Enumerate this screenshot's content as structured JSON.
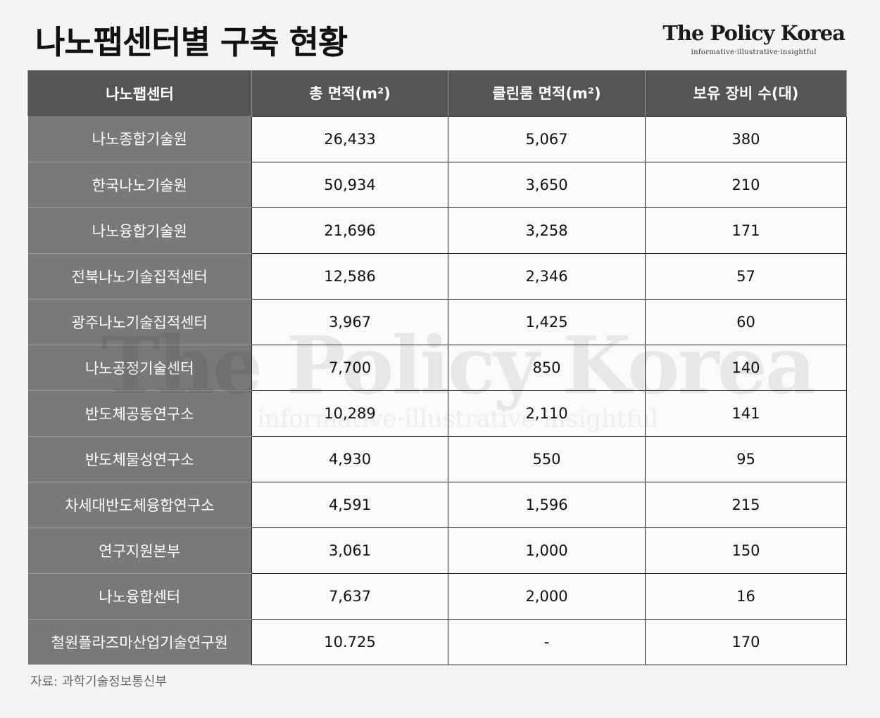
{
  "title": "나노팹센터별 구축 현황",
  "logo": {
    "name": "The Policy Korea",
    "tagline": "informative·illustrative·insightful"
  },
  "table": {
    "headers": [
      "나노팹센터",
      "총 면적(m²)",
      "클린룸 면적(m²)",
      "보유 장비 수(대)"
    ],
    "rows": [
      [
        "나노종합기술원",
        "26,433",
        "5,067",
        "380"
      ],
      [
        "한국나노기술원",
        "50,934",
        "3,650",
        "210"
      ],
      [
        "나노융합기술원",
        "21,696",
        "3,258",
        "171"
      ],
      [
        "전북나노기술집적센터",
        "12,586",
        "2,346",
        "57"
      ],
      [
        "광주나노기술집적센터",
        "3,967",
        "1,425",
        "60"
      ],
      [
        "나노공정기술센터",
        "7,700",
        "850",
        "140"
      ],
      [
        "반도체공동연구소",
        "10,289",
        "2,110",
        "141"
      ],
      [
        "반도체물성연구소",
        "4,930",
        "550",
        "95"
      ],
      [
        "차세대반도체융합연구소",
        "4,591",
        "1,596",
        "215"
      ],
      [
        "연구지원본부",
        "3,061",
        "1,000",
        "150"
      ],
      [
        "나노융합센터",
        "7,637",
        "2,000",
        "16"
      ],
      [
        "철원플라즈마산업기술연구원",
        "10.725",
        "-",
        "170"
      ]
    ]
  },
  "source": "자료: 과학기술정보통신부",
  "watermark": {
    "name": "The Policy Korea",
    "tagline": "informative·illustrative·insightful"
  }
}
